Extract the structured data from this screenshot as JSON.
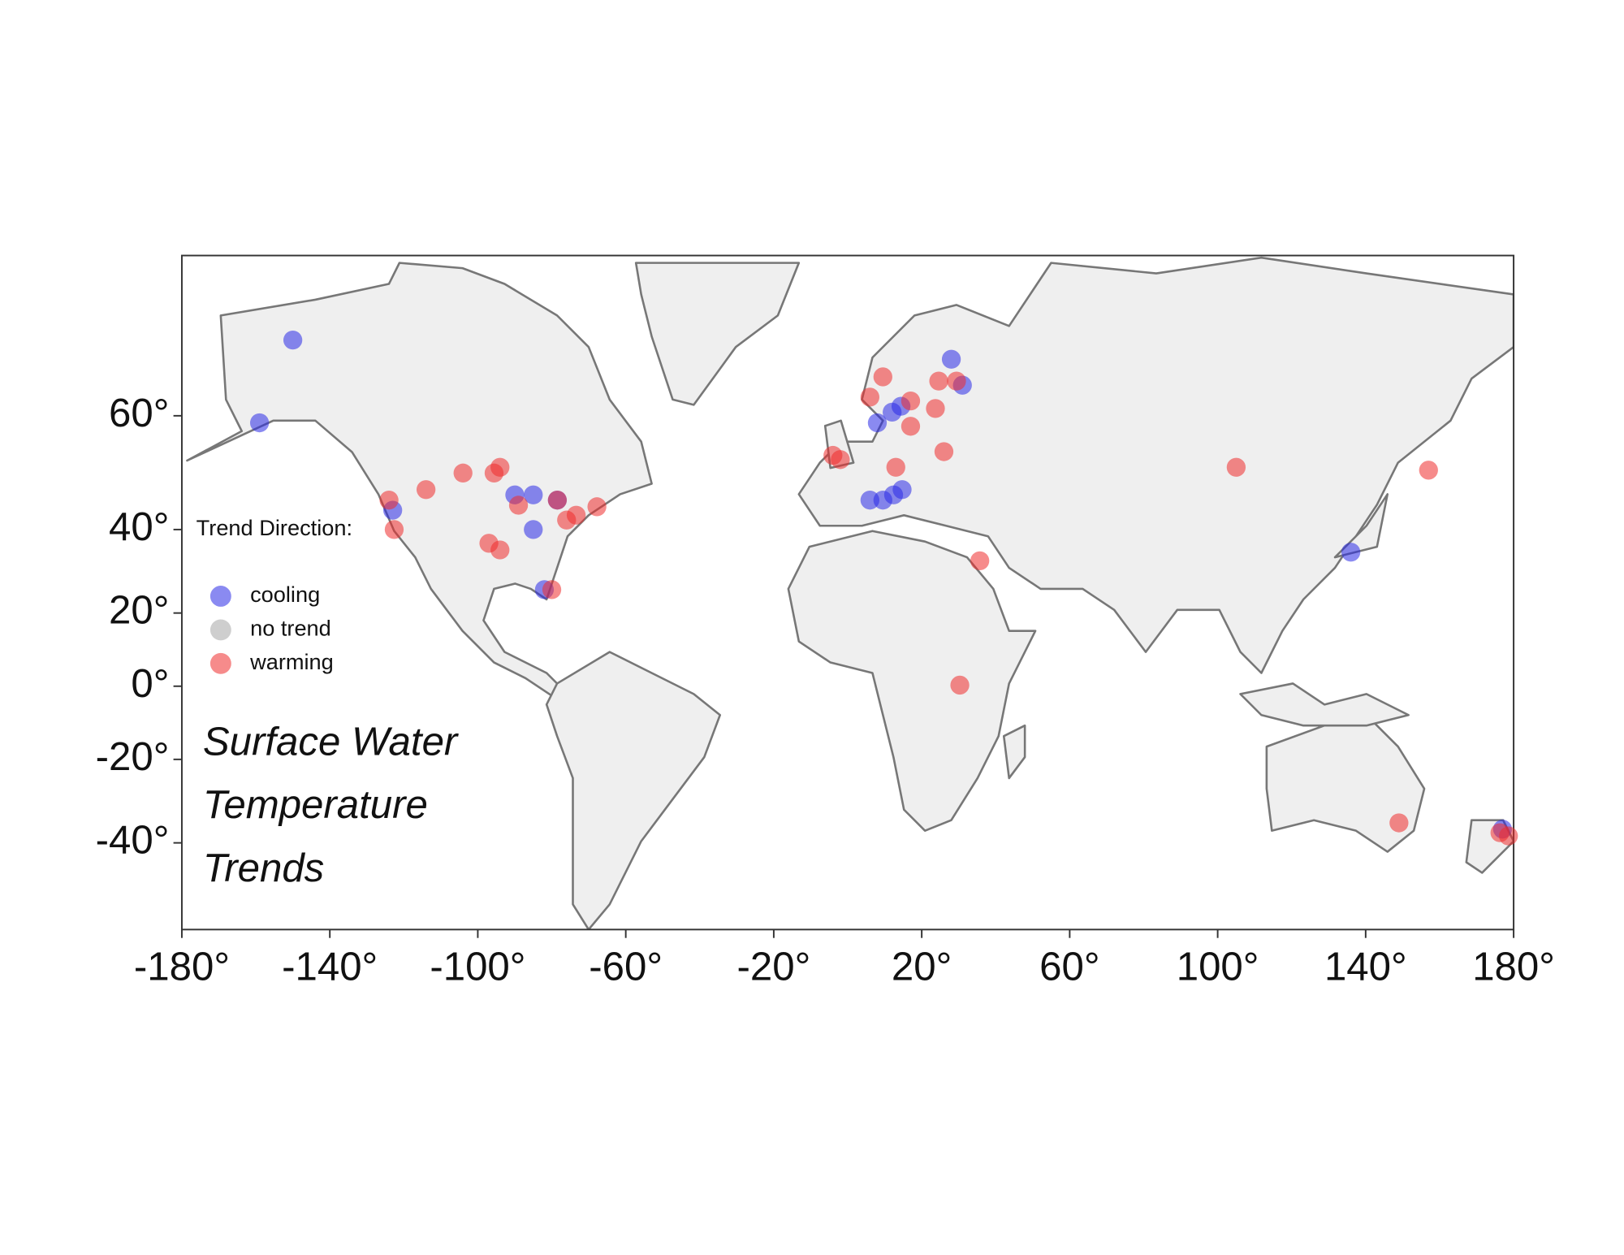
{
  "chart_data": {
    "type": "scatter",
    "projection": "mercator",
    "legend_title": "Trend Direction:",
    "annotation": [
      "Surface Water",
      "Temperature",
      "Trends"
    ],
    "xlim": [
      -180,
      180
    ],
    "ylim": [
      -56,
      76
    ],
    "xticks": [
      {
        "value": -180,
        "label": "-180°"
      },
      {
        "value": -140,
        "label": "-140°"
      },
      {
        "value": -100,
        "label": "-100°"
      },
      {
        "value": -60,
        "label": "-60°"
      },
      {
        "value": -20,
        "label": "-20°"
      },
      {
        "value": 20,
        "label": "20°"
      },
      {
        "value": 60,
        "label": "60°"
      },
      {
        "value": 100,
        "label": "100°"
      },
      {
        "value": 140,
        "label": "140°"
      },
      {
        "value": 180,
        "label": "180°"
      }
    ],
    "yticks": [
      {
        "value": 60,
        "label": "60°"
      },
      {
        "value": 40,
        "label": "40°"
      },
      {
        "value": 20,
        "label": "20°"
      },
      {
        "value": 0,
        "label": "0°"
      },
      {
        "value": -20,
        "label": "-20°"
      },
      {
        "value": -40,
        "label": "-40°"
      }
    ],
    "series": [
      {
        "name": "cooling",
        "color": "#2a2ae6",
        "x": [
          -150,
          -159,
          -123,
          -90,
          -85,
          -85,
          -82,
          -78.5,
          6,
          9.5,
          12.4,
          14.7,
          8,
          12,
          14.4,
          28,
          31,
          136,
          177
        ],
        "values": [
          69,
          59,
          44,
          47,
          47,
          40,
          26,
          46,
          46,
          46,
          47,
          48,
          59,
          60.5,
          61.3,
          67,
          64,
          35,
          -37
        ]
      },
      {
        "name": "no trend",
        "color": "#a6a6a6",
        "x": [],
        "values": []
      },
      {
        "name": "warming",
        "color": "#ee2b2b",
        "x": [
          -124,
          -122.6,
          -114,
          -104,
          -95.6,
          -94,
          -97,
          -94,
          -89,
          -78.5,
          -80,
          -76,
          -73.4,
          -67.8,
          6,
          9.5,
          17,
          17,
          23.7,
          24.6,
          29.4,
          26,
          -4,
          -2,
          13,
          35.7,
          30.3,
          105,
          157,
          149,
          176.3,
          178.6
        ],
        "values": [
          46,
          40,
          48,
          51,
          51,
          52,
          37,
          35.5,
          45,
          46,
          26,
          42,
          43,
          44.7,
          62.5,
          65,
          62,
          58.5,
          61,
          64.5,
          64.5,
          54.6,
          54,
          53.3,
          52,
          33,
          0.3,
          52,
          51.5,
          -35.6,
          -37.8,
          -38.5
        ]
      }
    ]
  }
}
